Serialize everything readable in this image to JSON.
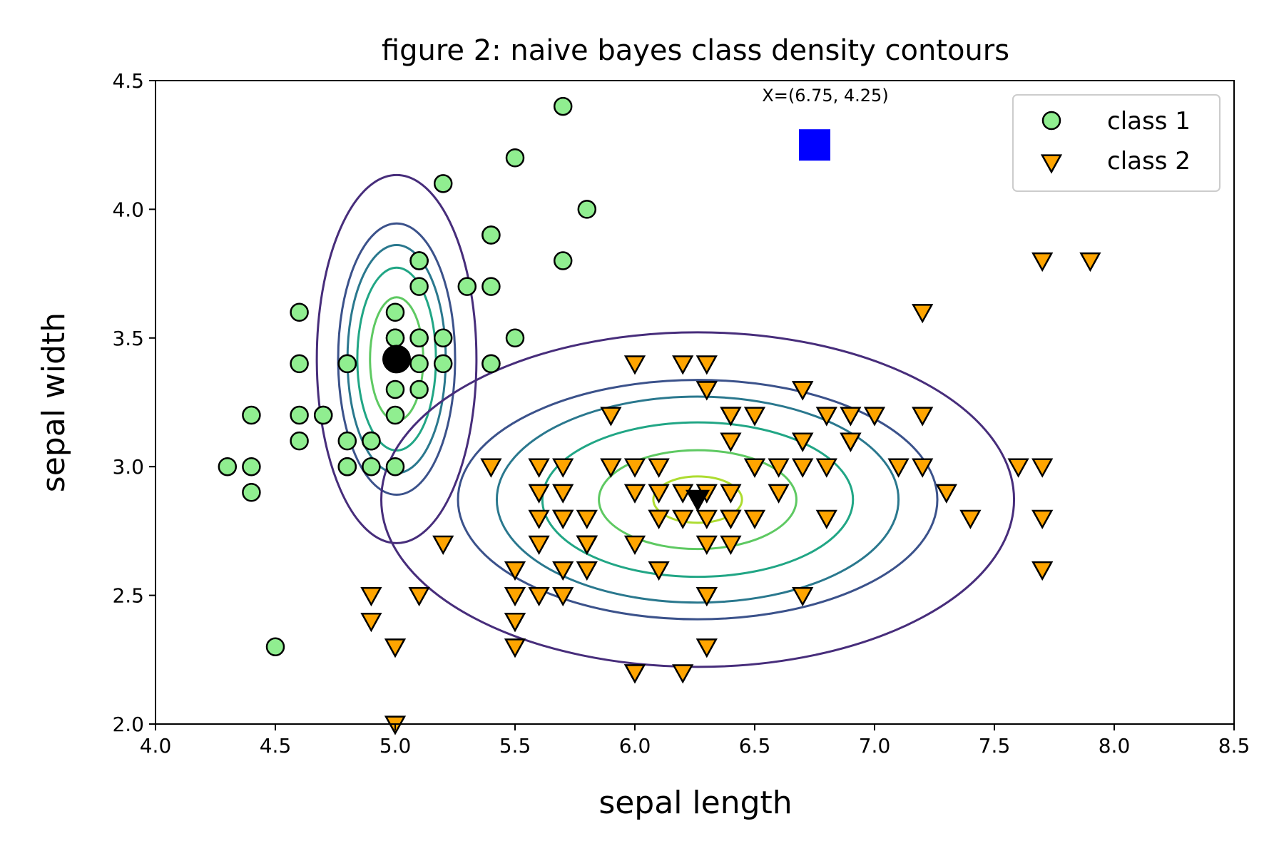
{
  "chart_data": {
    "type": "scatter",
    "title": "figure 2: naive bayes class density contours",
    "xlabel": "sepal length",
    "ylabel": "sepal width",
    "xlim": [
      4.0,
      8.5
    ],
    "ylim": [
      2.0,
      4.5
    ],
    "xticks": [
      "4.0",
      "4.5",
      "5.0",
      "5.5",
      "6.0",
      "6.5",
      "7.0",
      "7.5",
      "8.0",
      "8.5"
    ],
    "yticks": [
      "2.0",
      "2.5",
      "3.0",
      "3.5",
      "4.0",
      "4.5"
    ],
    "grid": false,
    "legend_position": "top-right",
    "series": [
      {
        "name": "class 1",
        "marker": "circle",
        "color": "#90ee90",
        "points": [
          [
            5.1,
            3.5
          ],
          [
            4.9,
            3.0
          ],
          [
            4.7,
            3.2
          ],
          [
            4.6,
            3.1
          ],
          [
            5.0,
            3.6
          ],
          [
            5.4,
            3.9
          ],
          [
            4.6,
            3.4
          ],
          [
            5.0,
            3.4
          ],
          [
            4.4,
            2.9
          ],
          [
            4.9,
            3.1
          ],
          [
            5.4,
            3.7
          ],
          [
            4.8,
            3.4
          ],
          [
            4.8,
            3.0
          ],
          [
            4.3,
            3.0
          ],
          [
            5.8,
            4.0
          ],
          [
            5.7,
            4.4
          ],
          [
            5.4,
            3.9
          ],
          [
            5.1,
            3.5
          ],
          [
            5.7,
            3.8
          ],
          [
            5.1,
            3.8
          ],
          [
            5.4,
            3.4
          ],
          [
            5.1,
            3.7
          ],
          [
            4.6,
            3.6
          ],
          [
            5.1,
            3.3
          ],
          [
            4.8,
            3.4
          ],
          [
            5.0,
            3.0
          ],
          [
            5.0,
            3.4
          ],
          [
            5.2,
            3.5
          ],
          [
            5.2,
            3.4
          ],
          [
            4.7,
            3.2
          ],
          [
            4.8,
            3.1
          ],
          [
            5.4,
            3.4
          ],
          [
            5.2,
            4.1
          ],
          [
            5.5,
            4.2
          ],
          [
            4.9,
            3.1
          ],
          [
            5.0,
            3.2
          ],
          [
            5.5,
            3.5
          ],
          [
            4.9,
            3.1
          ],
          [
            4.4,
            3.0
          ],
          [
            5.1,
            3.4
          ],
          [
            5.0,
            3.5
          ],
          [
            4.5,
            2.3
          ],
          [
            4.4,
            3.2
          ],
          [
            5.0,
            3.5
          ],
          [
            5.1,
            3.8
          ],
          [
            4.8,
            3.0
          ],
          [
            5.1,
            3.8
          ],
          [
            4.6,
            3.2
          ],
          [
            5.3,
            3.7
          ],
          [
            5.0,
            3.3
          ]
        ],
        "mean": [
          5.006,
          3.418
        ]
      },
      {
        "name": "class 2",
        "marker": "triangle-down",
        "color": "#ffa500",
        "points": [
          [
            7.0,
            3.2
          ],
          [
            6.4,
            3.2
          ],
          [
            6.9,
            3.1
          ],
          [
            5.5,
            2.3
          ],
          [
            6.5,
            2.8
          ],
          [
            5.7,
            2.8
          ],
          [
            6.3,
            3.3
          ],
          [
            4.9,
            2.4
          ],
          [
            6.6,
            2.9
          ],
          [
            5.2,
            2.7
          ],
          [
            5.0,
            2.0
          ],
          [
            5.9,
            3.0
          ],
          [
            6.0,
            2.2
          ],
          [
            6.1,
            2.9
          ],
          [
            5.6,
            2.9
          ],
          [
            6.7,
            3.1
          ],
          [
            5.6,
            3.0
          ],
          [
            5.8,
            2.7
          ],
          [
            6.2,
            2.2
          ],
          [
            5.6,
            2.5
          ],
          [
            5.9,
            3.2
          ],
          [
            6.1,
            2.8
          ],
          [
            6.3,
            2.5
          ],
          [
            6.1,
            2.8
          ],
          [
            6.4,
            2.9
          ],
          [
            6.6,
            3.0
          ],
          [
            6.8,
            2.8
          ],
          [
            6.7,
            3.0
          ],
          [
            6.0,
            2.9
          ],
          [
            5.7,
            2.6
          ],
          [
            5.5,
            2.4
          ],
          [
            5.5,
            2.4
          ],
          [
            5.8,
            2.7
          ],
          [
            6.0,
            2.7
          ],
          [
            5.4,
            3.0
          ],
          [
            6.0,
            3.4
          ],
          [
            6.7,
            3.1
          ],
          [
            6.3,
            2.3
          ],
          [
            5.6,
            3.0
          ],
          [
            5.5,
            2.5
          ],
          [
            5.5,
            2.6
          ],
          [
            6.1,
            3.0
          ],
          [
            5.8,
            2.6
          ],
          [
            5.0,
            2.3
          ],
          [
            5.6,
            2.7
          ],
          [
            5.7,
            3.0
          ],
          [
            5.7,
            2.9
          ],
          [
            6.2,
            2.9
          ],
          [
            5.1,
            2.5
          ],
          [
            5.7,
            2.8
          ],
          [
            6.3,
            3.3
          ],
          [
            5.8,
            2.7
          ],
          [
            7.1,
            3.0
          ],
          [
            6.3,
            2.9
          ],
          [
            6.5,
            3.0
          ],
          [
            7.6,
            3.0
          ],
          [
            4.9,
            2.5
          ],
          [
            7.3,
            2.9
          ],
          [
            6.7,
            2.5
          ],
          [
            7.2,
            3.6
          ],
          [
            6.5,
            3.2
          ],
          [
            6.4,
            2.7
          ],
          [
            6.8,
            3.0
          ],
          [
            5.7,
            2.5
          ],
          [
            5.8,
            2.8
          ],
          [
            6.4,
            3.2
          ],
          [
            6.5,
            3.0
          ],
          [
            7.7,
            3.8
          ],
          [
            7.7,
            2.6
          ],
          [
            6.0,
            2.2
          ],
          [
            6.9,
            3.2
          ],
          [
            5.6,
            2.8
          ],
          [
            7.7,
            2.8
          ],
          [
            6.3,
            2.7
          ],
          [
            6.7,
            3.3
          ],
          [
            7.2,
            3.2
          ],
          [
            6.2,
            2.8
          ],
          [
            6.1,
            3.0
          ],
          [
            6.4,
            2.8
          ],
          [
            7.2,
            3.0
          ],
          [
            7.4,
            2.8
          ],
          [
            7.9,
            3.8
          ],
          [
            6.4,
            2.8
          ],
          [
            6.3,
            2.8
          ],
          [
            6.1,
            2.6
          ],
          [
            7.7,
            3.0
          ],
          [
            6.3,
            3.4
          ],
          [
            6.4,
            3.1
          ],
          [
            6.0,
            3.0
          ],
          [
            6.9,
            3.1
          ],
          [
            6.7,
            3.1
          ],
          [
            6.9,
            3.1
          ],
          [
            5.8,
            2.7
          ],
          [
            6.8,
            3.2
          ],
          [
            6.7,
            3.3
          ],
          [
            6.7,
            3.0
          ],
          [
            6.3,
            2.5
          ],
          [
            6.5,
            3.0
          ],
          [
            6.2,
            3.4
          ],
          [
            5.9,
            3.0
          ]
        ],
        "mean": [
          6.262,
          2.872
        ]
      }
    ],
    "query_point": {
      "x": 6.75,
      "y": 4.25,
      "label": "X=(6.75, 4.25)",
      "color": "#0000ff",
      "marker": "square"
    },
    "contours": [
      {
        "class": "class 1",
        "center": [
          5.006,
          3.418
        ],
        "radii": [
          [
            0.111,
            0.24
          ],
          [
            0.164,
            0.355
          ],
          [
            0.205,
            0.443
          ],
          [
            0.244,
            0.527
          ],
          [
            0.333,
            0.715
          ]
        ],
        "colors": [
          "#5ec962",
          "#21a685",
          "#2a788e",
          "#3b528b",
          "#472d7b"
        ]
      },
      {
        "class": "class 2",
        "center": [
          6.262,
          2.872
        ],
        "radii": [
          [
            0.185,
            0.09
          ],
          [
            0.412,
            0.192
          ],
          [
            0.648,
            0.3
          ],
          [
            0.838,
            0.4
          ],
          [
            1.0,
            0.465
          ],
          [
            1.32,
            0.65
          ]
        ],
        "colors": [
          "#addc30",
          "#5ec962",
          "#21a685",
          "#2a788e",
          "#3b528b",
          "#472d7b"
        ]
      }
    ]
  }
}
